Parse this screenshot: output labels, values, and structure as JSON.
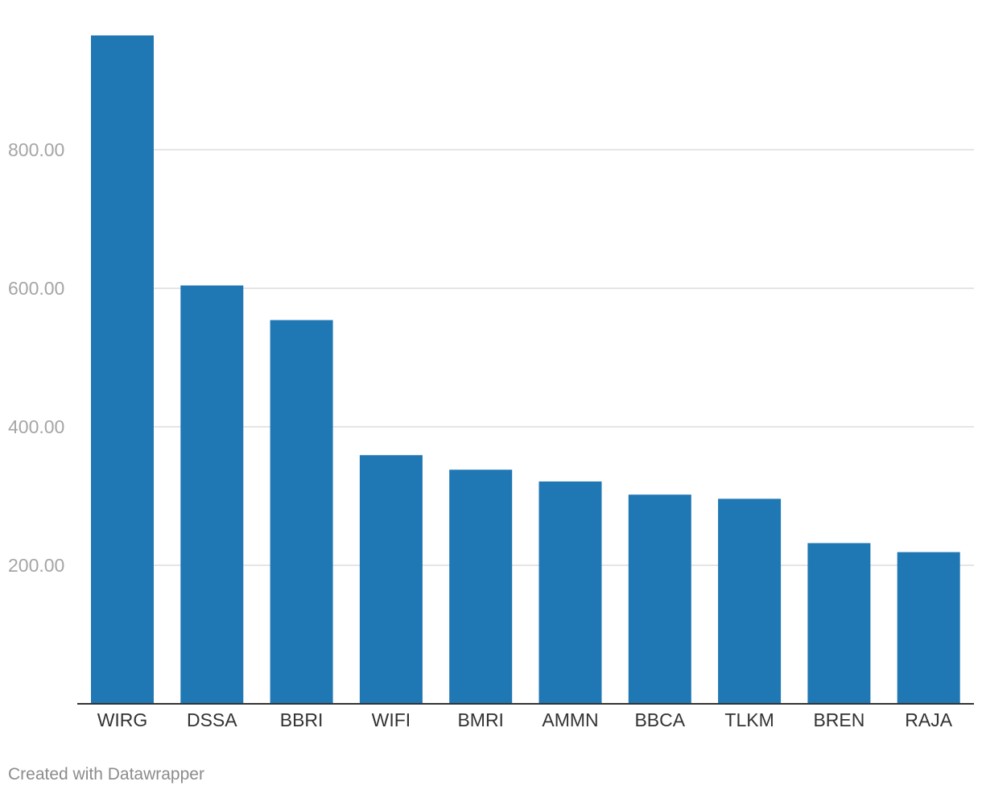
{
  "chart_data": {
    "type": "bar",
    "title": "",
    "xlabel": "",
    "ylabel": "",
    "categories": [
      "WIRG",
      "DSSA",
      "BBRI",
      "WIFI",
      "BMRI",
      "AMMN",
      "BBCA",
      "TLKM",
      "BREN",
      "RAJA"
    ],
    "values": [
      965,
      604,
      554,
      359,
      338,
      321,
      302,
      296,
      232,
      219
    ],
    "ylim": [
      0,
      965
    ],
    "y_ticks": [
      200,
      400,
      600,
      800
    ],
    "y_tick_labels": [
      "200.00",
      "400.00",
      "600.00",
      "800.00"
    ],
    "grid": true,
    "bar_color": "#1f77b4"
  },
  "footer": {
    "credit": "Created with Datawrapper"
  }
}
